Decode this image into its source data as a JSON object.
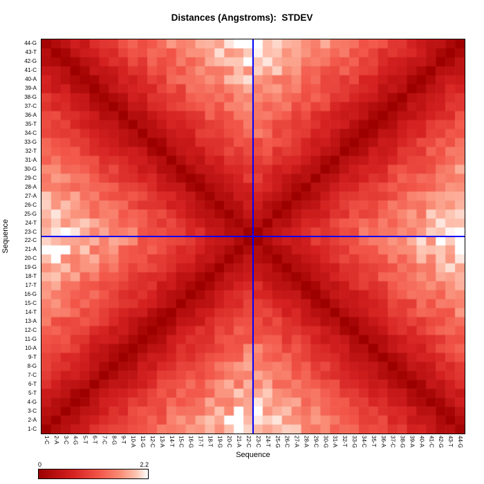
{
  "title": "Distances (Angstroms):  STDEV",
  "chart_data": {
    "type": "heatmap",
    "title": "Distances (Angstroms):  STDEV",
    "xlabel": "Sequence",
    "ylabel": "Sequence",
    "labels": [
      "1-C",
      "2-A",
      "3-C",
      "4-G",
      "5-T",
      "6-T",
      "7-C",
      "8-G",
      "9-T",
      "10-A",
      "11-G",
      "12-C",
      "13-A",
      "14-T",
      "15-C",
      "16-G",
      "17-T",
      "18-T",
      "19-G",
      "20-C",
      "21-A",
      "22-C",
      "23-C",
      "24-T",
      "25-G",
      "26-C",
      "27-A",
      "28-A",
      "29-C",
      "30-G",
      "31-A",
      "32-T",
      "33-G",
      "34-C",
      "35-T",
      "36-A",
      "37-C",
      "38-G",
      "39-A",
      "40-A",
      "41-C",
      "42-G",
      "43-T",
      "44-G"
    ],
    "x_axis_order": "left-to-right 1-C to 44-G",
    "y_axis_order": "bottom-to-top 1-C to 44-G",
    "colorbar": {
      "min": 0,
      "max": 2.2,
      "min_label": "0",
      "max_label": "2.2",
      "stops": [
        {
          "t": 0.0,
          "color": "#9E0000"
        },
        {
          "t": 0.3,
          "color": "#D42020"
        },
        {
          "t": 0.55,
          "color": "#F25548"
        },
        {
          "t": 0.75,
          "color": "#FA8E78"
        },
        {
          "t": 0.9,
          "color": "#FDC6B4"
        },
        {
          "t": 1.0,
          "color": "#FFFFFF"
        }
      ]
    },
    "crosshair": {
      "color": "#0000FF",
      "between_cols": [
        "22-C",
        "23-C"
      ],
      "between_rows": [
        "22-C",
        "23-C"
      ]
    },
    "value_model": {
      "note": "Exact per-cell STDEV values are not labeled in the image; matrix estimated from pixels: values near 0 (dark red) along the main diagonal and anti-diagonal (base-pair X pattern), rising to ~2.2 (white) in the mottled regions at the middle of each edge. Symmetric distance matrix.",
      "n": 44,
      "vmin": 0,
      "vmax": 2.2,
      "dmax": 21.5,
      "exponent": 0.75,
      "noise_amp": 0.55
    }
  }
}
